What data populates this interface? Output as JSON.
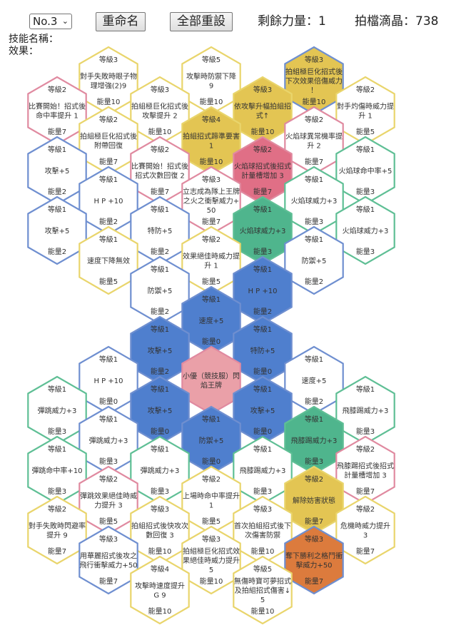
{
  "toolbar": {
    "level_select": "No.3",
    "rename_label": "重命名",
    "reset_label": "全部重設",
    "power_label": "剩餘力量：",
    "power_value": "1",
    "crystal_label": "拍檔滴晶：",
    "crystal_value": "738"
  },
  "info": {
    "skill_name_label": "技能名稱：",
    "effect_label": "效果："
  },
  "colors": {
    "yellow": "#e9d56c",
    "pink": "#e08aa0",
    "blue": "#6f8fd0",
    "green": "#5fbf95",
    "fill_yellow": "#e3c553",
    "fill_pink": "#e06f86",
    "fill_blue": "#4f7fce",
    "fill_green": "#4fb58d",
    "fill_orange": "#dc7b3d",
    "fill_center": "#eaa0a8"
  },
  "hexes": [
    {
      "level": "等級3",
      "title": "對手失敗時眼子物理增強(2)9",
      "energy": "能量10"
    },
    {
      "level": "等級5",
      "title": "攻擊時防禦下降 9",
      "energy": "能量10"
    },
    {
      "level": "等級3",
      "title": "拍組極巨化招式後下次效果倍傷威力！",
      "energy": "能量10"
    },
    {
      "level": "等級2",
      "title": "比賽開始！招式後命中率提升 1",
      "energy": "能量7"
    },
    {
      "level": "等級3",
      "title": "拍組極巨化招式後攻擊提升 2",
      "energy": "能量10"
    },
    {
      "level": "等級3",
      "title": "依攻擊升幅拍組招式↑",
      "energy": "能量10"
    },
    {
      "level": "等級2",
      "title": "對手灼傷時威力提升 1",
      "energy": "能量5"
    },
    {
      "level": "等級2",
      "title": "拍組極巨化招式後附帶回復",
      "energy": "能量7"
    },
    {
      "level": "等級4",
      "title": "拍組招式蹄準要害 1",
      "energy": "能量10"
    },
    {
      "level": "等級2",
      "title": "火焰球異常機率提升 2",
      "energy": "能量7"
    },
    {
      "level": "等級1",
      "title": "攻擊+5",
      "energy": "能量2"
    },
    {
      "level": "等級2",
      "title": "比賽開始！招式後招式次數回復 2",
      "energy": "能量7"
    },
    {
      "level": "等級2",
      "title": "火焰球招式後招式計量槽增加 3",
      "energy": "能量7"
    },
    {
      "level": "等級1",
      "title": "火焰球命中率+5",
      "energy": "能量3"
    },
    {
      "level": "等級1",
      "title": "H P +10",
      "energy": "能量2"
    },
    {
      "level": "等級3",
      "title": "立志成為隊上王牌之火之衝擊威力+50",
      "energy": "能量7"
    },
    {
      "level": "等級1",
      "title": "火焰球威力+3",
      "energy": "能量3"
    },
    {
      "level": "等級1",
      "title": "攻擊+5",
      "energy": "能量2"
    },
    {
      "level": "等級1",
      "title": "特防+5",
      "energy": "能量2"
    },
    {
      "level": "等級1",
      "title": "火焰球威力+3",
      "energy": "能量3"
    },
    {
      "level": "等級1",
      "title": "火焰球威力+3",
      "energy": "能量3"
    },
    {
      "level": "等級1",
      "title": "速度下降無效",
      "energy": "能量5"
    },
    {
      "level": "等級2",
      "title": "效果絕佳時威力提升 1",
      "energy": "能量5"
    },
    {
      "level": "等級1",
      "title": "防禦+5",
      "energy": "能量2"
    },
    {
      "level": "等級1",
      "title": "防禦+5",
      "energy": "能量2"
    },
    {
      "level": "等級1",
      "title": "H P +10",
      "energy": "能量2"
    },
    {
      "level": "等級1",
      "title": "速度+5",
      "energy": "能量0"
    },
    {
      "level": "等級1",
      "title": "攻擊+5",
      "energy": "能量2"
    },
    {
      "level": "等級1",
      "title": "特防+5",
      "energy": "能量0"
    },
    {
      "level": "等級1",
      "title": "H P +10",
      "energy": "能量0"
    },
    {
      "level": "等級1",
      "title": "速度+5",
      "energy": "能量2"
    },
    {
      "level": "",
      "title": "小優（競技服）閃焰王牌",
      "energy": ""
    },
    {
      "level": "等級1",
      "title": "彈跳威力+3",
      "energy": "能量3"
    },
    {
      "level": "等級1",
      "title": "攻擊+5",
      "energy": "能量0"
    },
    {
      "level": "等級1",
      "title": "攻擊+5",
      "energy": "能量0"
    },
    {
      "level": "等級1",
      "title": "飛膝踢威力+3",
      "energy": "能量3"
    },
    {
      "level": "等級1",
      "title": "彈跳威力+3",
      "energy": "能量3"
    },
    {
      "level": "等級1",
      "title": "防禦+5",
      "energy": "能量0"
    },
    {
      "level": "等級1",
      "title": "飛膝踢威力+3",
      "energy": "能量3"
    },
    {
      "level": "等級1",
      "title": "彈跳命中率+10",
      "energy": "能量3"
    },
    {
      "level": "等級1",
      "title": "彈跳威力+3",
      "energy": "能量3"
    },
    {
      "level": "等級1",
      "title": "飛膝踢威力+3",
      "energy": "能量3"
    },
    {
      "level": "等級2",
      "title": "飛膝踢招式後招式計量槽增加 3",
      "energy": "能量7"
    },
    {
      "level": "等級2",
      "title": "彈跳效果絕佳時威力提升 3",
      "energy": "能量5"
    },
    {
      "level": "等級2",
      "title": "上場時命中率提升 1",
      "energy": "能量5"
    },
    {
      "level": "等級2",
      "title": "解除妨害狀態",
      "energy": "能量7"
    },
    {
      "level": "等級2",
      "title": "對手失敗時閃避率提升 9",
      "energy": "能量7"
    },
    {
      "level": "等級3",
      "title": "拍組招式後快攻次數回復 3",
      "energy": "能量10"
    },
    {
      "level": "等級3",
      "title": "首次拍組招式後下次傷害防禦",
      "energy": "能量10"
    },
    {
      "level": "等級2",
      "title": "危機時威力提升 3",
      "energy": "能量7"
    },
    {
      "level": "等級3",
      "title": "用華麗招式後攻之飛行衝擊威力+50",
      "energy": "能量7"
    },
    {
      "level": "等級3",
      "title": "拍組極巨化招式效果絕佳時威力提升 5",
      "energy": "能量10"
    },
    {
      "level": "等級3",
      "title": "奪下勝利之格鬥衝擊威力+50",
      "energy": "能量7"
    },
    {
      "level": "等級4",
      "title": "攻擊時速度提升 G 9",
      "energy": "能量10"
    },
    {
      "level": "等級5",
      "title": "無傷時寶可夢招式及拍組招式傷害↓5",
      "energy": "能量10"
    }
  ]
}
